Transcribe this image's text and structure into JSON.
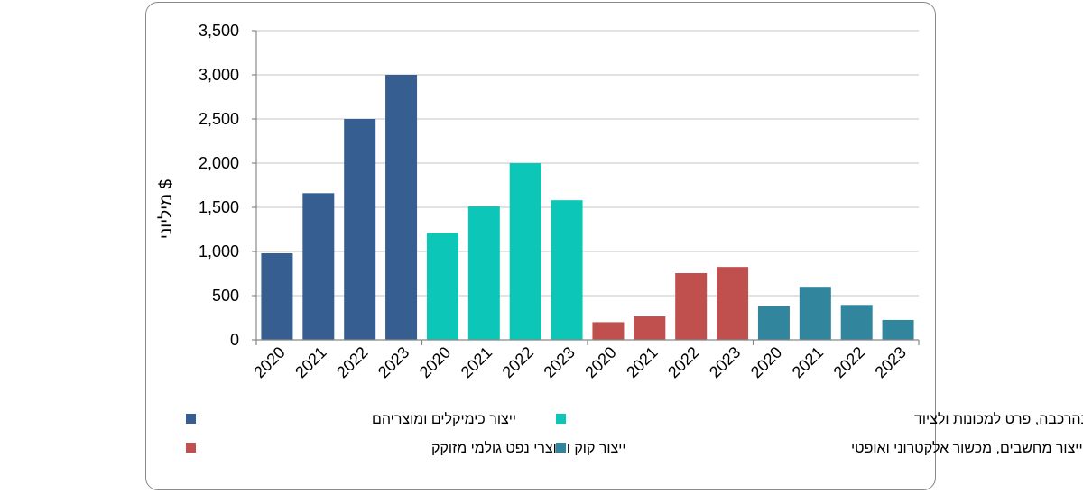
{
  "chart_data": {
    "type": "bar",
    "ylabel": "מיליוני $",
    "ylim": [
      0,
      3500
    ],
    "yticks": [
      "0",
      "500",
      "1,000",
      "1,500",
      "2,000",
      "2,500",
      "3,000",
      "3,500"
    ],
    "ytick_values": [
      0,
      500,
      1000,
      1500,
      2000,
      2500,
      3000,
      3500
    ],
    "grid": true,
    "legend_position": "bottom",
    "series": [
      {
        "name": "ייצור כימיקלים ומוצריהם",
        "color": "#375E91",
        "categories": [
          "2020",
          "2021",
          "2022",
          "2023"
        ],
        "values": [
          980,
          1660,
          2500,
          3000
        ]
      },
      {
        "name": "ייצור מוצרי מתכת בהרכבה, פרט למכונות ולציוד",
        "color": "#0CC7B8",
        "categories": [
          "2020",
          "2021",
          "2022",
          "2023"
        ],
        "values": [
          1210,
          1510,
          2000,
          1580
        ]
      },
      {
        "name": "ייצור קוק ומוצרי נפט גולמי מזוקק",
        "color": "#C0504D",
        "categories": [
          "2020",
          "2021",
          "2022",
          "2023"
        ],
        "values": [
          200,
          265,
          755,
          825
        ]
      },
      {
        "name": "ייצור מחשבים, מכשור אלקטרוני ואופטי",
        "color": "#31859C",
        "categories": [
          "2020",
          "2021",
          "2022",
          "2023"
        ],
        "values": [
          380,
          600,
          395,
          225
        ]
      }
    ]
  }
}
